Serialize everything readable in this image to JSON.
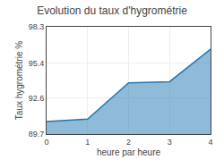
{
  "chart_data": {
    "type": "area",
    "title": "Evolution du taux d'hygrométrie",
    "xlabel": "heure par heure",
    "ylabel": "Taux hygrométrie %",
    "x": [
      0,
      1,
      2,
      3,
      4
    ],
    "values": [
      90.7,
      90.9,
      93.8,
      93.9,
      96.5
    ],
    "xlim": [
      0,
      4
    ],
    "ylim": [
      89.7,
      98.3
    ],
    "xticks": [
      0,
      1,
      2,
      3,
      4
    ],
    "yticks": [
      89.7,
      92.6,
      95.4,
      98.3
    ],
    "grid": true
  }
}
